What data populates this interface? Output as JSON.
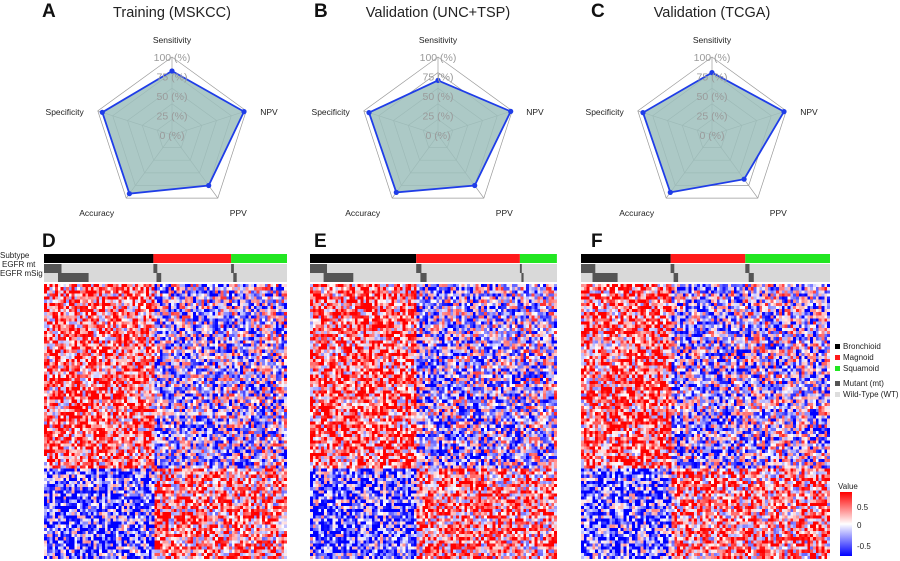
{
  "panel_letters": [
    "A",
    "B",
    "C",
    "D",
    "E",
    "F"
  ],
  "annotation_rows": [
    "Subtype",
    "EGFR mt",
    "EGFR mSig"
  ],
  "colors": {
    "Bronchioid": "#000000",
    "Magnoid": "#ff1a1a",
    "Squamoid": "#22e622",
    "mutant": "#555555",
    "wild_type": "#dddddd",
    "radar_fill": "#9dbfbc",
    "radar_line": "#1f3de8",
    "grid": "#9a9a9a",
    "heat_high": "#ff0000",
    "heat_mid": "#ffffff",
    "heat_low": "#0000ff"
  },
  "legend": {
    "subtype_title": "",
    "subtypes": [
      "Bronchioid",
      "Magnoid",
      "Squamoid"
    ],
    "mutation_items": [
      "Mutant (mt)",
      "Wild-Type (WT)"
    ],
    "value_title": "Value",
    "value_ticks": [
      "0.5",
      "0",
      "-0.5"
    ]
  },
  "chart_data": [
    {
      "type": "radar",
      "title": "Training (MSKCC)",
      "axes": [
        "Sensitivity",
        "NPV",
        "PPV",
        "Accuracy",
        "Specificity"
      ],
      "tick_labels": [
        "0 (%)",
        "25 (%)",
        "50 (%)",
        "75 (%)",
        "100 (%)"
      ],
      "range": [
        0,
        100
      ],
      "values": [
        82,
        97,
        80,
        93,
        94
      ],
      "grid": true
    },
    {
      "type": "radar",
      "title": "Validation (UNC+TSP)",
      "axes": [
        "Sensitivity",
        "NPV",
        "PPV",
        "Accuracy",
        "Specificity"
      ],
      "tick_labels": [
        "0 (%)",
        "25 (%)",
        "50 (%)",
        "75 (%)",
        "100 (%)"
      ],
      "range": [
        0,
        100
      ],
      "values": [
        70,
        98,
        80,
        91,
        93
      ],
      "grid": true
    },
    {
      "type": "radar",
      "title": "Validation (TCGA)",
      "axes": [
        "Sensitivity",
        "NPV",
        "PPV",
        "Accuracy",
        "Specificity"
      ],
      "tick_labels": [
        "0 (%)",
        "25 (%)",
        "50 (%)",
        "75 (%)",
        "100 (%)"
      ],
      "range": [
        0,
        100
      ],
      "values": [
        80,
        97,
        70,
        91,
        93
      ],
      "grid": true
    },
    {
      "type": "heatmap",
      "dataset": "MSKCC",
      "subtype_fractions": {
        "Bronchioid": 0.45,
        "Magnoid": 0.32,
        "Squamoid": 0.23
      },
      "color_range": [
        -0.5,
        0.5
      ],
      "legend": "right"
    },
    {
      "type": "heatmap",
      "dataset": "UNC+TSP",
      "subtype_fractions": {
        "Bronchioid": 0.43,
        "Magnoid": 0.42,
        "Squamoid": 0.15
      },
      "color_range": [
        -0.5,
        0.5
      ]
    },
    {
      "type": "heatmap",
      "dataset": "TCGA",
      "subtype_fractions": {
        "Bronchioid": 0.36,
        "Magnoid": 0.3,
        "Squamoid": 0.34
      },
      "color_range": [
        -0.5,
        0.5
      ]
    }
  ]
}
